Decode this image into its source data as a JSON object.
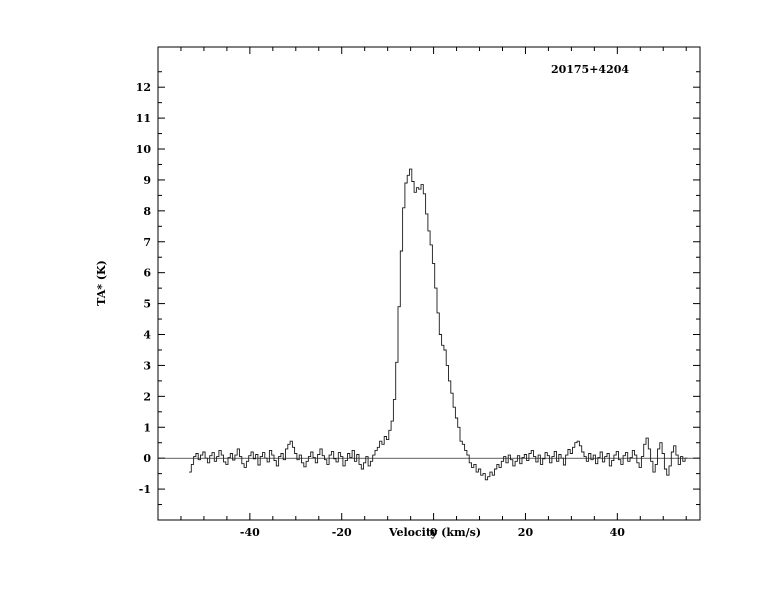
{
  "figure": {
    "background": "#ffffff",
    "axis_color": "#000000"
  },
  "chart_data": {
    "type": "line",
    "style": "histogram-step",
    "title": "20175+4204",
    "xlabel": "Velocity (km/s)",
    "ylabel": "TA* (K)",
    "xlim": [
      -60,
      58
    ],
    "ylim": [
      -2,
      13.3
    ],
    "grid": false,
    "legend": "none",
    "x_ticks_major": [
      -40,
      -20,
      0,
      20,
      40
    ],
    "x_tick_minor_step": 5,
    "y_ticks_major": [
      -1,
      0,
      1,
      2,
      3,
      4,
      5,
      6,
      7,
      8,
      9,
      10,
      11,
      12
    ],
    "baseline_y": 0,
    "line_color": "#1a1a1a",
    "x_start": -53.0,
    "x_step": 0.5,
    "values": [
      -0.45,
      -0.2,
      0.05,
      0.15,
      -0.05,
      0.1,
      0.2,
      0.0,
      -0.15,
      0.08,
      0.18,
      -0.1,
      0.05,
      0.25,
      0.1,
      -0.12,
      -0.2,
      0.02,
      0.15,
      -0.06,
      0.1,
      0.3,
      0.05,
      -0.18,
      -0.3,
      -0.1,
      0.08,
      0.2,
      -0.02,
      0.12,
      -0.22,
      0.05,
      0.18,
      0.0,
      -0.12,
      0.25,
      0.1,
      -0.08,
      -0.25,
      0.05,
      0.15,
      -0.05,
      0.3,
      0.45,
      0.55,
      0.35,
      0.15,
      -0.05,
      0.1,
      -0.15,
      -0.28,
      -0.1,
      0.05,
      0.2,
      0.02,
      -0.15,
      0.12,
      0.3,
      0.08,
      -0.05,
      -0.2,
      0.1,
      0.22,
      -0.02,
      -0.12,
      0.18,
      0.05,
      -0.25,
      -0.08,
      0.15,
      0.02,
      0.25,
      -0.1,
      0.12,
      -0.2,
      -0.35,
      -0.15,
      0.05,
      -0.25,
      -0.1,
      0.1,
      0.25,
      0.35,
      0.55,
      0.45,
      0.7,
      0.6,
      0.9,
      1.2,
      1.9,
      3.1,
      4.9,
      6.7,
      8.1,
      8.9,
      9.15,
      9.35,
      8.95,
      8.6,
      8.75,
      8.7,
      8.85,
      8.55,
      7.9,
      7.35,
      6.9,
      6.3,
      5.5,
      4.7,
      4.0,
      3.65,
      3.5,
      3.0,
      2.5,
      2.1,
      1.65,
      1.3,
      1.0,
      0.55,
      0.45,
      0.25,
      0.1,
      -0.15,
      -0.3,
      -0.2,
      -0.45,
      -0.35,
      -0.55,
      -0.5,
      -0.7,
      -0.6,
      -0.45,
      -0.55,
      -0.35,
      -0.2,
      -0.3,
      -0.1,
      0.05,
      -0.15,
      0.1,
      -0.05,
      -0.25,
      -0.1,
      0.08,
      -0.18,
      0.02,
      0.12,
      -0.08,
      0.15,
      0.25,
      0.05,
      -0.12,
      0.1,
      -0.2,
      -0.02,
      0.18,
      0.08,
      -0.15,
      0.05,
      0.22,
      -0.1,
      0.12,
      0.0,
      -0.22,
      0.1,
      0.28,
      0.15,
      0.35,
      0.5,
      0.55,
      0.4,
      0.2,
      0.05,
      -0.1,
      0.15,
      -0.05,
      0.1,
      -0.18,
      0.02,
      0.2,
      -0.12,
      0.05,
      0.15,
      -0.25,
      -0.08,
      0.1,
      0.22,
      -0.05,
      -0.2,
      0.08,
      0.18,
      -0.1,
      0.02,
      0.25,
      0.1,
      -0.15,
      -0.3,
      0.05,
      0.45,
      0.65,
      0.3,
      -0.1,
      -0.45,
      -0.2,
      0.3,
      0.5,
      0.15,
      -0.35,
      -0.55,
      -0.25,
      0.2,
      0.4,
      0.1,
      -0.2,
      0.05,
      -0.1,
      0.0
    ]
  }
}
